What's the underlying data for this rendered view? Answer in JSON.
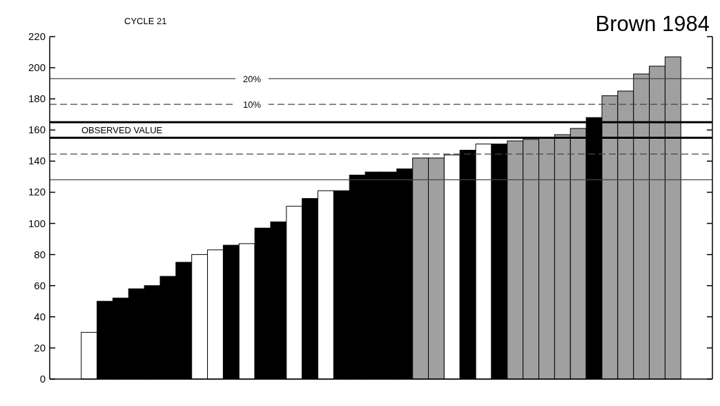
{
  "chart_data": {
    "type": "bar",
    "title": "CYCLE 21",
    "annotations": [
      "Brown 1984",
      {
        "text": "20%",
        "y": 193
      },
      {
        "text": "10%",
        "y": 176.5
      },
      "OBSERVED VALUE"
    ],
    "categories": [
      null,
      null,
      null,
      null,
      null,
      null,
      null,
      null,
      null,
      null,
      null,
      null,
      null,
      null,
      null,
      null,
      null,
      null,
      null,
      null,
      null,
      null,
      null,
      null,
      null,
      null,
      null,
      null,
      null,
      null,
      null,
      null,
      null,
      null,
      null,
      null,
      null,
      null
    ],
    "values": [
      30,
      50,
      52,
      58,
      60,
      66,
      75,
      80,
      83,
      86,
      87,
      97,
      101,
      111,
      116,
      121,
      121,
      131,
      133,
      133,
      135,
      142,
      142,
      144,
      147,
      151,
      151,
      153,
      154,
      155,
      157,
      161,
      168,
      182,
      185,
      196,
      201,
      207
    ],
    "colors": [
      "#ffffff",
      "#000000",
      "#000000",
      "#000000",
      "#000000",
      "#000000",
      "#000000",
      "#ffffff",
      "#ffffff",
      "#000000",
      "#ffffff",
      "#000000",
      "#000000",
      "#ffffff",
      "#000000",
      "#ffffff",
      "#000000",
      "#000000",
      "#000000",
      "#000000",
      "#000000",
      "#a0a0a0",
      "#a0a0a0",
      "#ffffff",
      "#000000",
      "#ffffff",
      "#000000",
      "#a0a0a0",
      "#a0a0a0",
      "#a0a0a0",
      "#a0a0a0",
      "#a0a0a0",
      "#000000",
      "#a0a0a0",
      "#a0a0a0",
      "#a0a0a0",
      "#a0a0a0",
      "#a0a0a0"
    ],
    "ylim": [
      0,
      220
    ],
    "yticks": [
      0,
      20,
      40,
      60,
      80,
      100,
      120,
      140,
      160,
      180,
      200,
      220
    ],
    "tick_labels": "y",
    "grid": false,
    "ref_lines": [
      {
        "axis": "y",
        "value": 193,
        "line_style": "solid",
        "color": "#444444"
      },
      {
        "axis": "y",
        "value": 176.5,
        "line_style": "dashed",
        "color": "#444444"
      },
      {
        "axis": "y",
        "value": 165,
        "line_style": "solid",
        "color": "#000000"
      },
      {
        "axis": "y",
        "value": 155,
        "line_style": "solid",
        "color": "#000000"
      },
      {
        "axis": "y",
        "value": 144.5,
        "line_style": "dashed",
        "color": "#444444"
      },
      {
        "axis": "y",
        "value": 128,
        "line_style": "solid",
        "color": "#444444"
      }
    ]
  }
}
